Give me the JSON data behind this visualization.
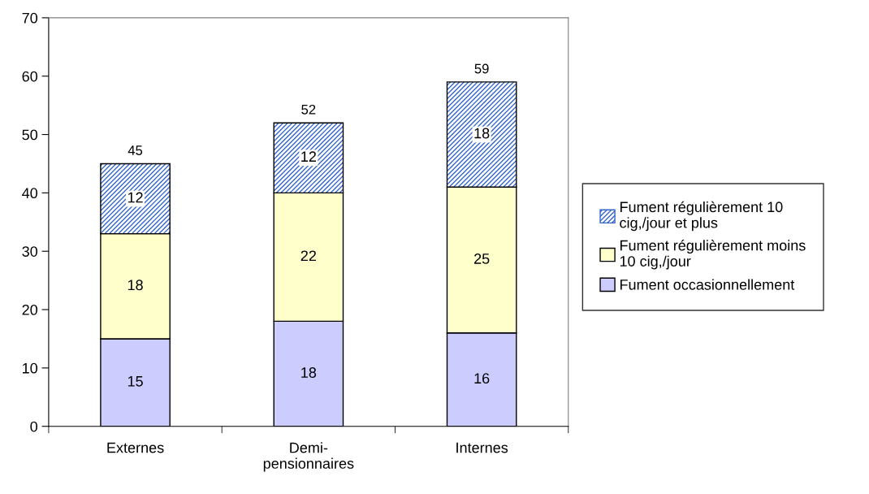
{
  "chart_data": {
    "type": "bar",
    "stacked": true,
    "categories": [
      "Externes",
      "Demi-\npensionnaires",
      "Internes"
    ],
    "series": [
      {
        "name": "Fument occasionnellement",
        "color": "#ccccff",
        "values": [
          15,
          18,
          16
        ]
      },
      {
        "name": "Fument régulièrement moins\n10 cig,/jour",
        "color": "#ffffcc",
        "values": [
          18,
          22,
          25
        ]
      },
      {
        "name": "Fument régulièrement 10\ncig,/jour et plus",
        "color": "#3366cc",
        "values": [
          12,
          12,
          18
        ]
      }
    ],
    "totals": [
      "45",
      "52",
      "59"
    ],
    "data_labels": true,
    "ylim": [
      0,
      70
    ],
    "yticks": [
      0,
      10,
      20,
      30,
      40,
      50,
      60,
      70
    ],
    "grid": false,
    "legend": "right"
  }
}
